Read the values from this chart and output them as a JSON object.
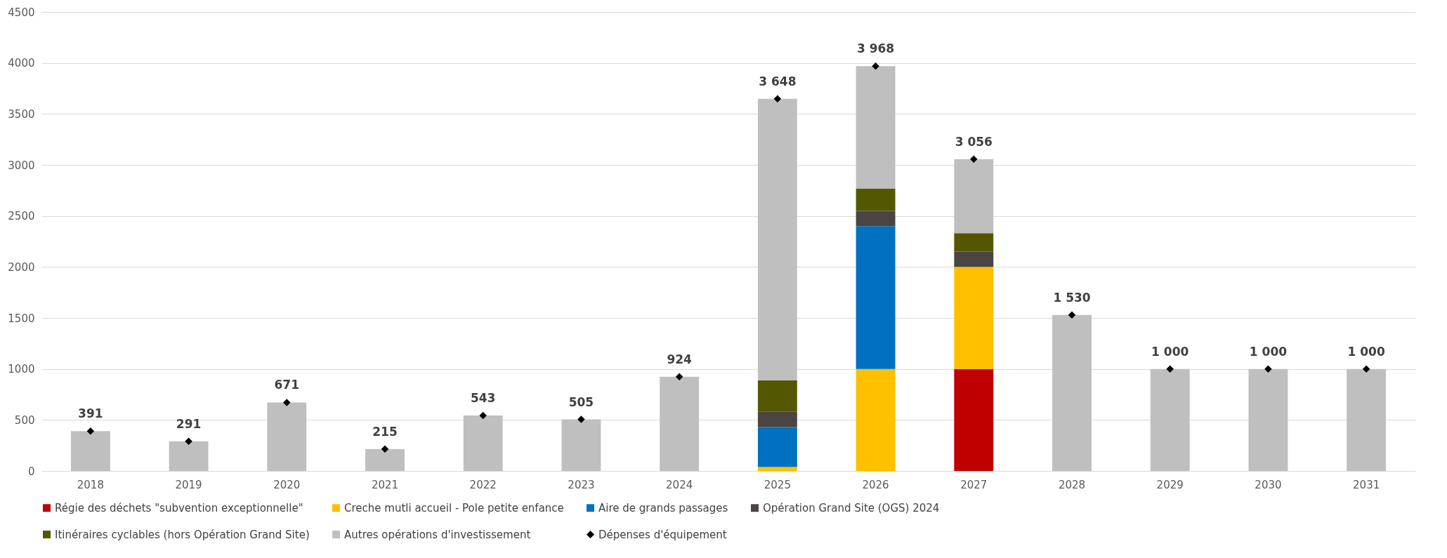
{
  "chart_data": {
    "type": "bar",
    "stacked": true,
    "categories": [
      "2018",
      "2019",
      "2020",
      "2021",
      "2022",
      "2023",
      "2024",
      "2025",
      "2026",
      "2027",
      "2028",
      "2029",
      "2030",
      "2031"
    ],
    "ylim": [
      0,
      4500
    ],
    "yticks": [
      0,
      500,
      1000,
      1500,
      2000,
      2500,
      3000,
      3500,
      4000,
      4500
    ],
    "grid": "y",
    "legend": "bottom",
    "series": [
      {
        "name": "Régie des déchets \"subvention exceptionnelle\"",
        "color": "#c00000",
        "values": [
          null,
          null,
          null,
          null,
          null,
          null,
          null,
          null,
          null,
          1000,
          null,
          null,
          null,
          null
        ]
      },
      {
        "name": "Creche mutli accueil - Pole petite enfance",
        "color": "#ffc000",
        "values": [
          null,
          null,
          null,
          null,
          null,
          null,
          null,
          40,
          1000,
          1000,
          null,
          null,
          null,
          null
        ]
      },
      {
        "name": "Aire de grands passages",
        "color": "#0070c0",
        "values": [
          null,
          null,
          null,
          null,
          null,
          null,
          null,
          390,
          1400,
          null,
          null,
          null,
          null,
          null
        ]
      },
      {
        "name": "Opération Grand Site (OGS) 2024",
        "color": "#4a4442",
        "values": [
          null,
          null,
          null,
          null,
          null,
          null,
          null,
          150,
          150,
          150,
          null,
          null,
          null,
          null
        ]
      },
      {
        "name": "Itinéraires cyclables (hors Opération Grand Site)",
        "color": "#535800",
        "values": [
          null,
          null,
          null,
          null,
          null,
          null,
          null,
          310,
          220,
          180,
          null,
          null,
          null,
          null
        ]
      },
      {
        "name": "Autres opérations d'investissement",
        "color": "#bfbfbf",
        "values": [
          391,
          291,
          671,
          215,
          543,
          505,
          924,
          2758,
          1198,
          726,
          1530,
          1000,
          1000,
          1000
        ]
      },
      {
        "name": "Dépenses d'équipement",
        "type": "scatter",
        "marker": "diamond",
        "color": "#000000",
        "values": [
          391,
          291,
          671,
          215,
          543,
          505,
          924,
          3648,
          3968,
          3056,
          1530,
          1000,
          1000,
          1000
        ],
        "value_labels": [
          "391",
          "291",
          "671",
          "215",
          "543",
          "505",
          "924",
          "3 648",
          "3 968",
          "3 056",
          "1 530",
          "1 000",
          "1 000",
          "1 000"
        ]
      }
    ]
  }
}
